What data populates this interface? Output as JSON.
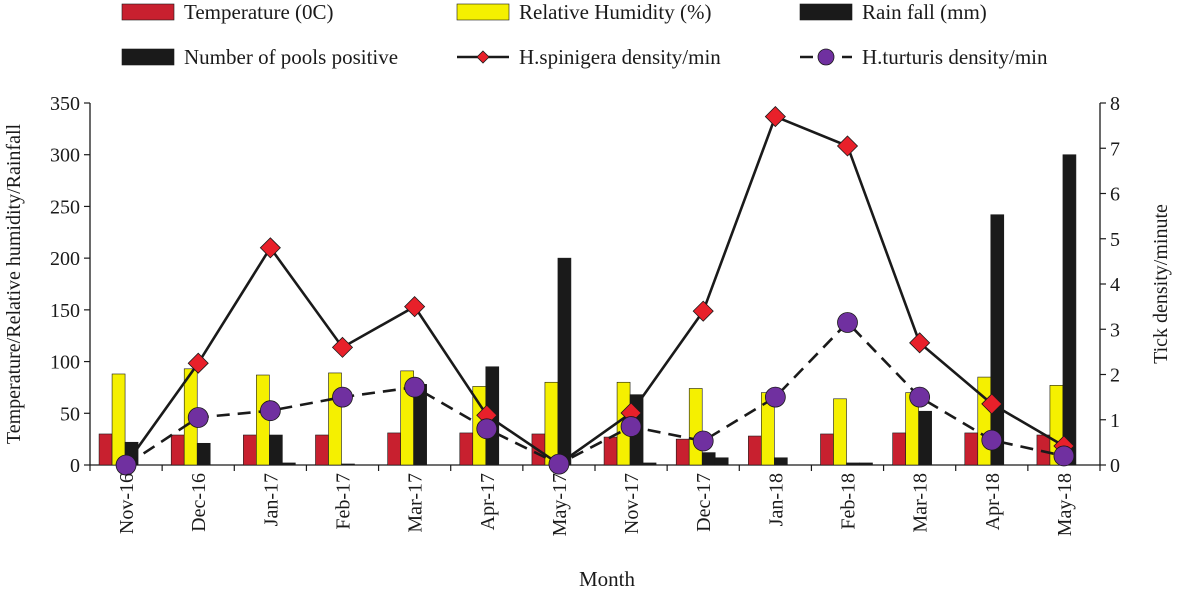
{
  "chart_data": {
    "type": "bar+line",
    "xlabel": "Month",
    "ylabel_left": "Temperature/Relative humidity/Rainfall",
    "ylabel_right": "Tick density/minute",
    "ylim_left": [
      0,
      350
    ],
    "ylim_right": [
      0,
      8
    ],
    "yticks_left": [
      "0",
      "50",
      "100",
      "150",
      "200",
      "250",
      "300",
      "350"
    ],
    "yticks_right": [
      "0",
      "1",
      "2",
      "3",
      "4",
      "5",
      "6",
      "7",
      "8"
    ],
    "categories": [
      "Nov-16",
      "Dec-16",
      "Jan-17",
      "Feb-17",
      "Mar-17",
      "Apr-17",
      "May-17",
      "Nov-17",
      "Dec-17",
      "Jan-18",
      "Feb-18",
      "Mar-18",
      "Apr-18",
      "May-18"
    ],
    "bar_series": [
      {
        "name": "Temperature (0C)",
        "color": "#c8202f",
        "values": [
          30,
          29,
          29,
          29,
          31,
          31,
          30,
          27,
          25,
          28,
          30,
          31,
          31,
          29
        ]
      },
      {
        "name": "Relative Humidity (%)",
        "color": "#f5f000",
        "values": [
          88,
          93,
          87,
          89,
          91,
          76,
          80,
          80,
          74,
          70,
          64,
          70,
          85,
          77
        ]
      },
      {
        "name": "Rain fall (mm)",
        "color": "#1a1a1a",
        "values": [
          22,
          21,
          29,
          1,
          78,
          95,
          200,
          68,
          12,
          7,
          2,
          52,
          242,
          300
        ]
      },
      {
        "name": "Number of pools positive",
        "color": "#1a1a1a",
        "values": [
          0,
          0,
          2,
          0,
          0,
          0,
          0,
          2,
          7,
          0,
          2,
          0,
          0,
          0
        ]
      }
    ],
    "line_series": [
      {
        "name": "H.spinigera density/min",
        "color": "#1a1a1a",
        "marker": "diamond",
        "marker_color": "#e8202a",
        "dash": "solid",
        "values": [
          0.02,
          2.25,
          4.8,
          2.6,
          3.5,
          1.1,
          0.02,
          1.15,
          3.4,
          7.7,
          7.05,
          2.7,
          1.35,
          0.42
        ]
      },
      {
        "name": "H.turturis density/min",
        "color": "#1a1a1a",
        "marker": "circle",
        "marker_color": "#7030a0",
        "dash": "dashed",
        "values": [
          0.0,
          1.05,
          1.2,
          1.5,
          1.72,
          0.8,
          0.02,
          0.85,
          0.53,
          1.5,
          3.15,
          1.5,
          0.55,
          0.2
        ]
      }
    ]
  }
}
